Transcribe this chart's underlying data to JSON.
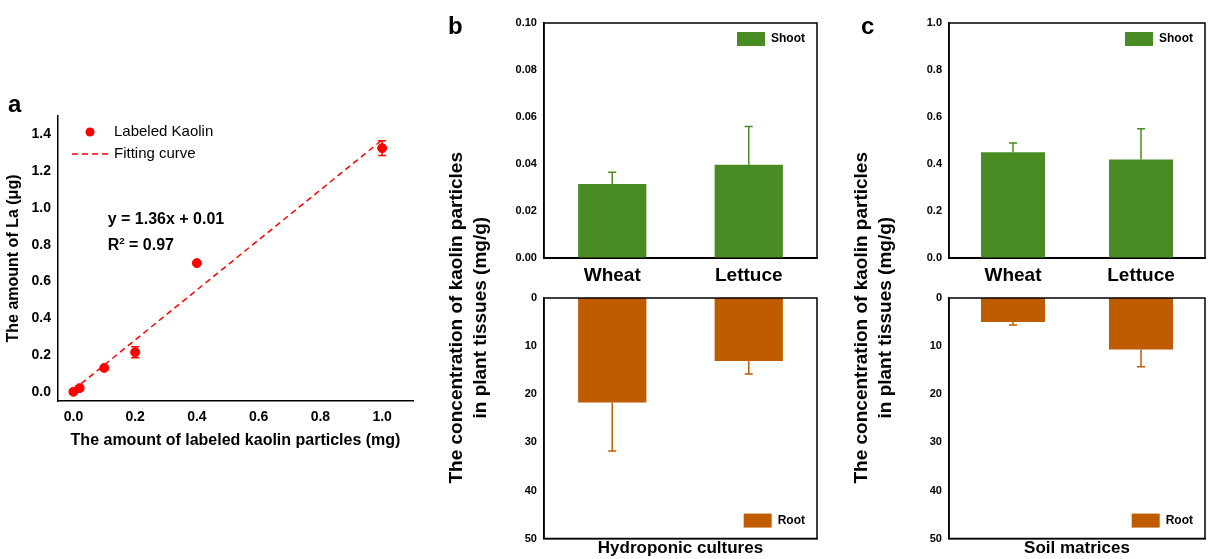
{
  "chart_data": [
    {
      "type": "scatter",
      "title": "a",
      "xlabel": "The amount of labeled kaolin particles (mg)",
      "ylabel": "The amount of La (μg)",
      "xlim": [
        -0.05,
        1.1
      ],
      "xticks": [
        {
          "value": 0,
          "label": "0.0"
        },
        {
          "value": 0.2,
          "label": "0.2"
        },
        {
          "value": 0.4,
          "label": "0.4"
        },
        {
          "value": 0.6,
          "label": "0.6"
        },
        {
          "value": 0.8,
          "label": "0.8"
        },
        {
          "value": 1,
          "label": "1.0"
        }
      ],
      "ylim": [
        -0.05,
        1.5
      ],
      "yticks": [
        {
          "value": 0,
          "label": "0.0"
        },
        {
          "value": 0.2,
          "label": "0.2"
        },
        {
          "value": 0.4,
          "label": "0.4"
        },
        {
          "value": 0.6,
          "label": "0.6"
        },
        {
          "value": 0.8,
          "label": "0.8"
        },
        {
          "value": 1,
          "label": "1.0"
        },
        {
          "value": 1.2,
          "label": "1.2"
        },
        {
          "value": 1.4,
          "label": "1.4"
        }
      ],
      "grid": false,
      "legend": "top left",
      "annotations": [
        "y = 1.36x + 0.01",
        "R$^{2}$ = 0.97"
      ],
      "series": [
        {
          "name": "Labeled Kaolin",
          "color": "#ff0000",
          "marker": "circle",
          "x": [
            0,
            0.02,
            0.1,
            0.2,
            0.4,
            1
          ],
          "values": [
            0,
            0.02,
            0.13,
            0.215,
            0.7,
            1.325
          ],
          "errors": [
            0.01,
            0.01,
            0.01,
            0.03,
            0.012,
            0.04
          ]
        },
        {
          "name": "Fitting curve",
          "type": "line",
          "line_style": "dashed",
          "color": "#ff0000",
          "x": [
            0,
            1
          ],
          "values": [
            0.01,
            1.37
          ]
        }
      ]
    },
    {
      "type": "bar",
      "title": "b",
      "ylabel": "The concentration of kaolin particles\nin plant tissues (mg/g)",
      "categories": [
        "Wheat",
        "Lettuce"
      ],
      "ylim": [
        0,
        0.1
      ],
      "yticks": [
        {
          "value": 0,
          "label": "0.00"
        },
        {
          "value": 0.02,
          "label": "0.02"
        },
        {
          "value": 0.04,
          "label": "0.04"
        },
        {
          "value": 0.06,
          "label": "0.06"
        },
        {
          "value": 0.08,
          "label": "0.08"
        },
        {
          "value": 0.1,
          "label": "0.10"
        }
      ],
      "grid": false,
      "legend": "top right",
      "series": [
        {
          "name": "Shoot",
          "color": "#4a8c24",
          "values": [
            0.0315,
            0.0397
          ],
          "errors": [
            [
              0.0315,
              0.0365
            ],
            [
              0.0397,
              0.056
            ]
          ]
        }
      ]
    },
    {
      "type": "bar",
      "xlabel": "Hydroponic cultures",
      "categories": [
        null,
        null
      ],
      "ylim": [
        50,
        0
      ],
      "yticks": [
        0,
        10,
        20,
        30,
        40,
        50
      ],
      "grid": false,
      "legend": "bottom right",
      "tick_labels": "y",
      "series": [
        {
          "name": "Root",
          "color": "#bf5b00",
          "values": [
            21.7,
            13.1
          ],
          "errors": [
            [
              21.7,
              31.8
            ],
            [
              13.1,
              15.8
            ]
          ]
        }
      ]
    },
    {
      "type": "bar",
      "title": "c",
      "ylabel": "The concentration of kaolin particles\nin plant tissues (mg/g)",
      "categories": [
        "Wheat",
        "Lettuce"
      ],
      "ylim": [
        0,
        1
      ],
      "yticks": [
        {
          "value": 0,
          "label": "0.0"
        },
        {
          "value": 0.2,
          "label": "0.2"
        },
        {
          "value": 0.4,
          "label": "0.4"
        },
        {
          "value": 0.6,
          "label": "0.6"
        },
        {
          "value": 0.8,
          "label": "0.8"
        },
        {
          "value": 1,
          "label": "1.0"
        }
      ],
      "grid": false,
      "legend": "top right",
      "series": [
        {
          "name": "Shoot",
          "color": "#4a8c24",
          "values": [
            0.45,
            0.42
          ],
          "errors": [
            [
              0.45,
              0.49
            ],
            [
              0.42,
              0.55
            ]
          ]
        }
      ]
    },
    {
      "type": "bar",
      "xlabel": "Soil matrices",
      "categories": [
        null,
        null
      ],
      "ylim": [
        50,
        0
      ],
      "yticks": [
        0,
        10,
        20,
        30,
        40,
        50
      ],
      "grid": false,
      "legend": "bottom right",
      "tick_labels": "y",
      "series": [
        {
          "name": "Root",
          "color": "#bf5b00",
          "values": [
            5,
            10.7
          ],
          "errors": [
            [
              5,
              5.6
            ],
            [
              10.7,
              14.3
            ]
          ]
        }
      ]
    }
  ]
}
